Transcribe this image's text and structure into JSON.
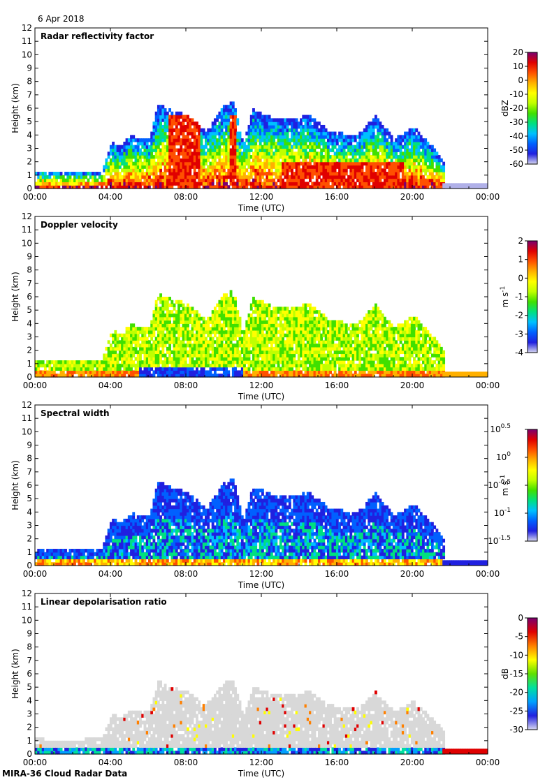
{
  "date": "6 Apr 2018",
  "footer": "MIRA-36 Cloud Radar Data",
  "colors": {
    "accent_low": "#d8d8f0",
    "accent_high": "#7a0070",
    "ldr_background": "#d8d8d8"
  },
  "chart_data": [
    {
      "type": "heatmap",
      "title": "Radar reflectivity factor",
      "xlabel": "Time (UTC)",
      "ylabel": "Height (km)",
      "xticks": [
        "00:00",
        "04:00",
        "08:00",
        "12:00",
        "16:00",
        "20:00",
        "00:00"
      ],
      "xlim": [
        0,
        24
      ],
      "ylim": [
        0,
        12
      ],
      "yticks": [
        "0",
        "1",
        "2",
        "3",
        "4",
        "5",
        "6",
        "7",
        "8",
        "9",
        "10",
        "11",
        "12"
      ],
      "colorbar": {
        "unit": "dBZ",
        "min": -60,
        "max": 20,
        "ticks": [
          "20",
          "10",
          "0",
          "-10",
          "-20",
          "-30",
          "-40",
          "-50",
          "-60"
        ]
      },
      "cloud_top_km": [
        [
          0,
          1.2
        ],
        [
          2,
          1.1
        ],
        [
          3.5,
          1.3
        ],
        [
          4,
          3.4
        ],
        [
          4.5,
          3.1
        ],
        [
          5,
          3.8
        ],
        [
          6,
          3.6
        ],
        [
          6.5,
          6.3
        ],
        [
          7,
          5.8
        ],
        [
          8,
          5.4
        ],
        [
          9,
          4.2
        ],
        [
          10,
          6.2
        ],
        [
          10.5,
          6.3
        ],
        [
          11,
          3.2
        ],
        [
          11.5,
          5.8
        ],
        [
          12.5,
          5.2
        ],
        [
          13.5,
          5.0
        ],
        [
          14.5,
          5.4
        ],
        [
          15.5,
          4.2
        ],
        [
          17,
          3.8
        ],
        [
          18,
          5.3
        ],
        [
          19,
          3.6
        ],
        [
          20,
          4.5
        ],
        [
          21,
          3.0
        ],
        [
          21.6,
          2.0
        ]
      ]
    },
    {
      "type": "heatmap",
      "title": "Doppler velocity",
      "xlabel": "Time (UTC)",
      "ylabel": "Height (km)",
      "xticks": [
        "00:00",
        "04:00",
        "08:00",
        "12:00",
        "16:00",
        "20:00",
        "00:00"
      ],
      "xlim": [
        0,
        24
      ],
      "ylim": [
        0,
        12
      ],
      "yticks": [
        "0",
        "1",
        "2",
        "3",
        "4",
        "5",
        "6",
        "7",
        "8",
        "9",
        "10",
        "11",
        "12"
      ],
      "colorbar": {
        "unit": "m s",
        "unit_sup": "-1",
        "min": -4,
        "max": 2,
        "ticks": [
          "2",
          "1",
          "0",
          "-1",
          "-2",
          "-3",
          "-4"
        ]
      }
    },
    {
      "type": "heatmap",
      "title": "Spectral width",
      "xlabel": "Time (UTC)",
      "ylabel": "Height (km)",
      "xticks": [
        "00:00",
        "04:00",
        "08:00",
        "12:00",
        "16:00",
        "20:00",
        "00:00"
      ],
      "xlim": [
        0,
        24
      ],
      "ylim": [
        0,
        12
      ],
      "yticks": [
        "0",
        "1",
        "2",
        "3",
        "4",
        "5",
        "6",
        "7",
        "8",
        "9",
        "10",
        "11",
        "12"
      ],
      "colorbar": {
        "unit": "m s",
        "unit_sup": "-1",
        "scale": "log10",
        "ticks": [
          [
            "10",
            "0.5"
          ],
          [
            "10",
            "0"
          ],
          [
            "10",
            "-0.5"
          ],
          [
            "10",
            "-1"
          ],
          [
            "10",
            "-1.5"
          ]
        ]
      }
    },
    {
      "type": "heatmap",
      "title": "Linear depolarisation ratio",
      "xlabel": "Time (UTC)",
      "ylabel": "Height (km)",
      "xticks": [
        "00:00",
        "04:00",
        "08:00",
        "12:00",
        "16:00",
        "20:00",
        "00:00"
      ],
      "xlim": [
        0,
        24
      ],
      "ylim": [
        0,
        12
      ],
      "yticks": [
        "0",
        "1",
        "2",
        "3",
        "4",
        "5",
        "6",
        "7",
        "8",
        "9",
        "10",
        "11",
        "12"
      ],
      "colorbar": {
        "unit": "dB",
        "min": -30,
        "max": 0,
        "ticks": [
          "0",
          "-5",
          "-10",
          "-15",
          "-20",
          "-25",
          "-30"
        ]
      }
    }
  ]
}
